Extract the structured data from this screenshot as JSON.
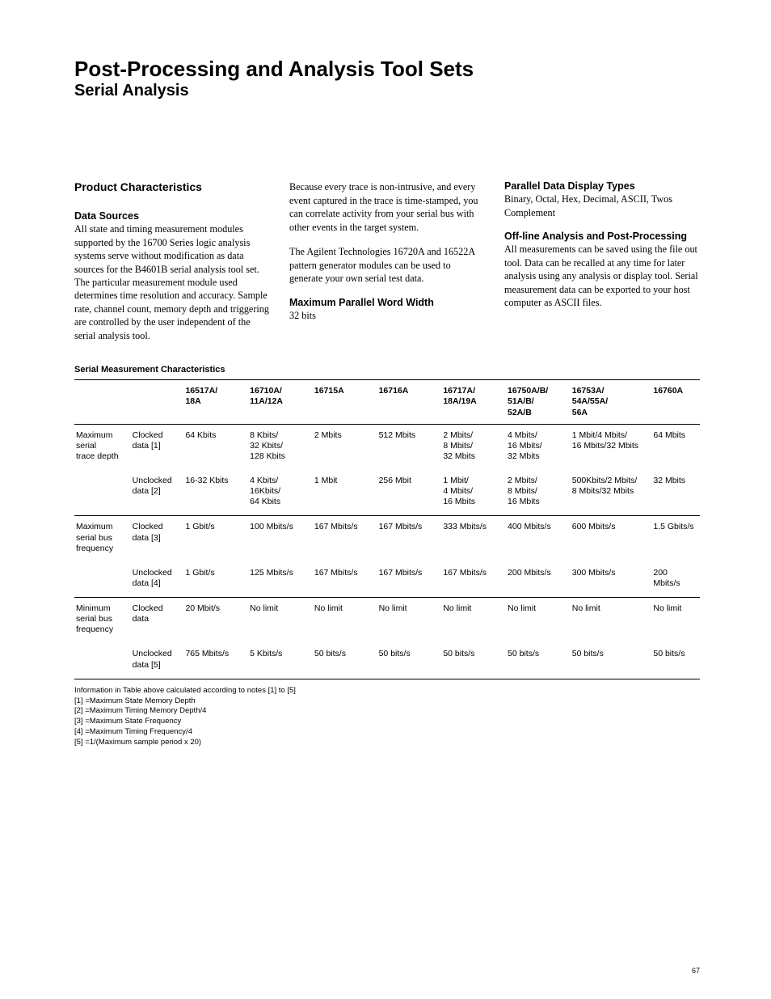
{
  "header": {
    "title": "Post-Processing and Analysis Tool Sets",
    "subtitle": "Serial Analysis"
  },
  "col1": {
    "heading": "Product Characteristics",
    "sub1_title": "Data Sources",
    "sub1_body": "All state and timing measurement modules supported by the 16700 Series logic analysis systems serve without modification as data sources for the B4601B serial analysis tool set. The particular measurement module used determines time resolution and accuracy. Sample rate, channel count, memory depth and triggering are controlled by the user independent of the serial analysis tool."
  },
  "col2": {
    "p1": "Because every trace is non-intrusive, and every event captured in the trace is time-stamped, you can correlate activity from your serial bus with other events in the target system.",
    "p2": "The Agilent Technologies 16720A and 16522A pattern generator modules can be used to generate your own serial test data.",
    "h1": "Maximum Parallel Word Width",
    "h1_body": "32 bits"
  },
  "col3": {
    "h1": "Parallel Data Display Types",
    "h1_body": "Binary, Octal, Hex, Decimal, ASCII, Twos Complement",
    "h2": "Off-line Analysis and Post-Processing",
    "h2_body": "All measurements can be saved using the file out tool. Data can be recalled at any time for later analysis using any analysis or display tool. Serial measurement data can be exported to your host computer as ASCII files."
  },
  "table": {
    "title": "Serial Measurement Characteristics",
    "columns": [
      "",
      "",
      "16517A/\n18A",
      "16710A/\n11A/12A",
      "16715A",
      "16716A",
      "16717A/\n18A/19A",
      "16750A/B/\n51A/B/\n52A/B",
      "16753A/\n54A/55A/\n56A",
      "16760A"
    ],
    "rows": [
      {
        "sep": true,
        "cells": [
          "Maximum\nserial\ntrace depth",
          "Clocked\ndata [1]",
          "64 Kbits",
          "8 Kbits/\n32 Kbits/\n128 Kbits",
          "2 Mbits",
          "512 Mbits",
          "2 Mbits/\n8 Mbits/\n32 Mbits",
          "4 Mbits/\n16 Mbits/\n32 Mbits",
          "1 Mbit/4 Mbits/\n16 Mbits/32 Mbits",
          "64 Mbits"
        ]
      },
      {
        "sep": false,
        "cells": [
          "",
          "Unclocked\ndata [2]",
          "16-32 Kbits",
          "4 Kbits/\n16Kbits/\n64 Kbits",
          "1 Mbit",
          "256 Mbit",
          "1 Mbit/\n4 Mbits/\n16 Mbits",
          "2 Mbits/\n8 Mbits/\n16 Mbits",
          "500Kbits/2 Mbits/\n8 Mbits/32 Mbits",
          "32 Mbits"
        ]
      },
      {
        "sep": true,
        "cells": [
          "Maximum\nserial bus\nfrequency",
          "Clocked\ndata [3]",
          "1 Gbit/s",
          "100 Mbits/s",
          "167 Mbits/s",
          "167 Mbits/s",
          "333 Mbits/s",
          "400 Mbits/s",
          "600 Mbits/s",
          "1.5 Gbits/s"
        ]
      },
      {
        "sep": false,
        "cells": [
          "",
          "Unclocked\ndata [4]",
          "1 Gbit/s",
          "125 Mbits/s",
          "167 Mbits/s",
          "167 Mbits/s",
          "167 Mbits/s",
          "200 Mbits/s",
          "300 Mbits/s",
          "200 Mbits/s"
        ]
      },
      {
        "sep": true,
        "cells": [
          "Minimum\nserial bus\nfrequency",
          "Clocked\ndata",
          "20 Mbit/s",
          "No limit",
          "No limit",
          "No limit",
          "No limit",
          "No limit",
          "No limit",
          "No limit"
        ]
      },
      {
        "sep": false,
        "last": true,
        "cells": [
          "",
          "Unclocked\ndata [5]",
          "765 Mbits/s",
          "5 Kbits/s",
          "50 bits/s",
          "50 bits/s",
          "50 bits/s",
          "50 bits/s",
          "50 bits/s",
          "50 bits/s"
        ]
      }
    ],
    "notes": [
      "Information in Table above calculated according to notes [1] to [5]",
      "[1] =Maximum State Memory Depth",
      "[2] =Maximum Timing Memory Depth/4",
      "[3] =Maximum State Frequency",
      "[4] =Maximum Timing Frequency/4",
      "[5] =1/(Maximum sample period x 20)"
    ]
  },
  "page_number": "67"
}
